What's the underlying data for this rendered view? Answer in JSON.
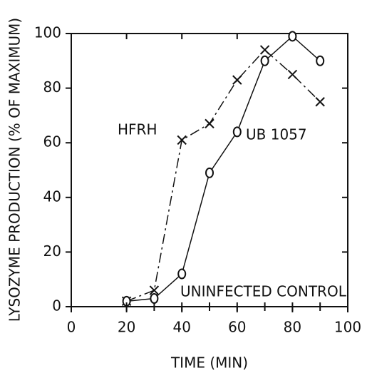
{
  "chart_data": {
    "type": "line",
    "x_label": "TIME (MIN)",
    "y_label": "LYSOZYME PRODUCTION (% OF MAXIMUM)",
    "x": [
      20,
      30,
      40,
      50,
      60,
      70,
      80,
      90
    ],
    "series": [
      {
        "name": "HFRH",
        "color": "#111111",
        "marker": "x",
        "dash": "14 5 3 5",
        "values": [
          2,
          6,
          61,
          67,
          83,
          94,
          85,
          75
        ]
      },
      {
        "name": "UB 1057",
        "color": "#111111",
        "marker": "o",
        "dash": "none",
        "values": [
          2,
          3,
          12,
          49,
          64,
          90,
          99,
          90
        ]
      },
      {
        "name": "UNINFECTED CONTROL",
        "color": "#111111",
        "marker": "+",
        "dash": "8 6",
        "values": [
          0,
          0,
          0,
          0,
          0,
          0,
          0,
          0
        ]
      }
    ],
    "xlim": [
      0,
      100
    ],
    "ylim": [
      0,
      100
    ],
    "xticks": [
      0,
      20,
      40,
      60,
      80,
      100
    ],
    "yticks": [
      0,
      20,
      40,
      60,
      80,
      100
    ]
  }
}
